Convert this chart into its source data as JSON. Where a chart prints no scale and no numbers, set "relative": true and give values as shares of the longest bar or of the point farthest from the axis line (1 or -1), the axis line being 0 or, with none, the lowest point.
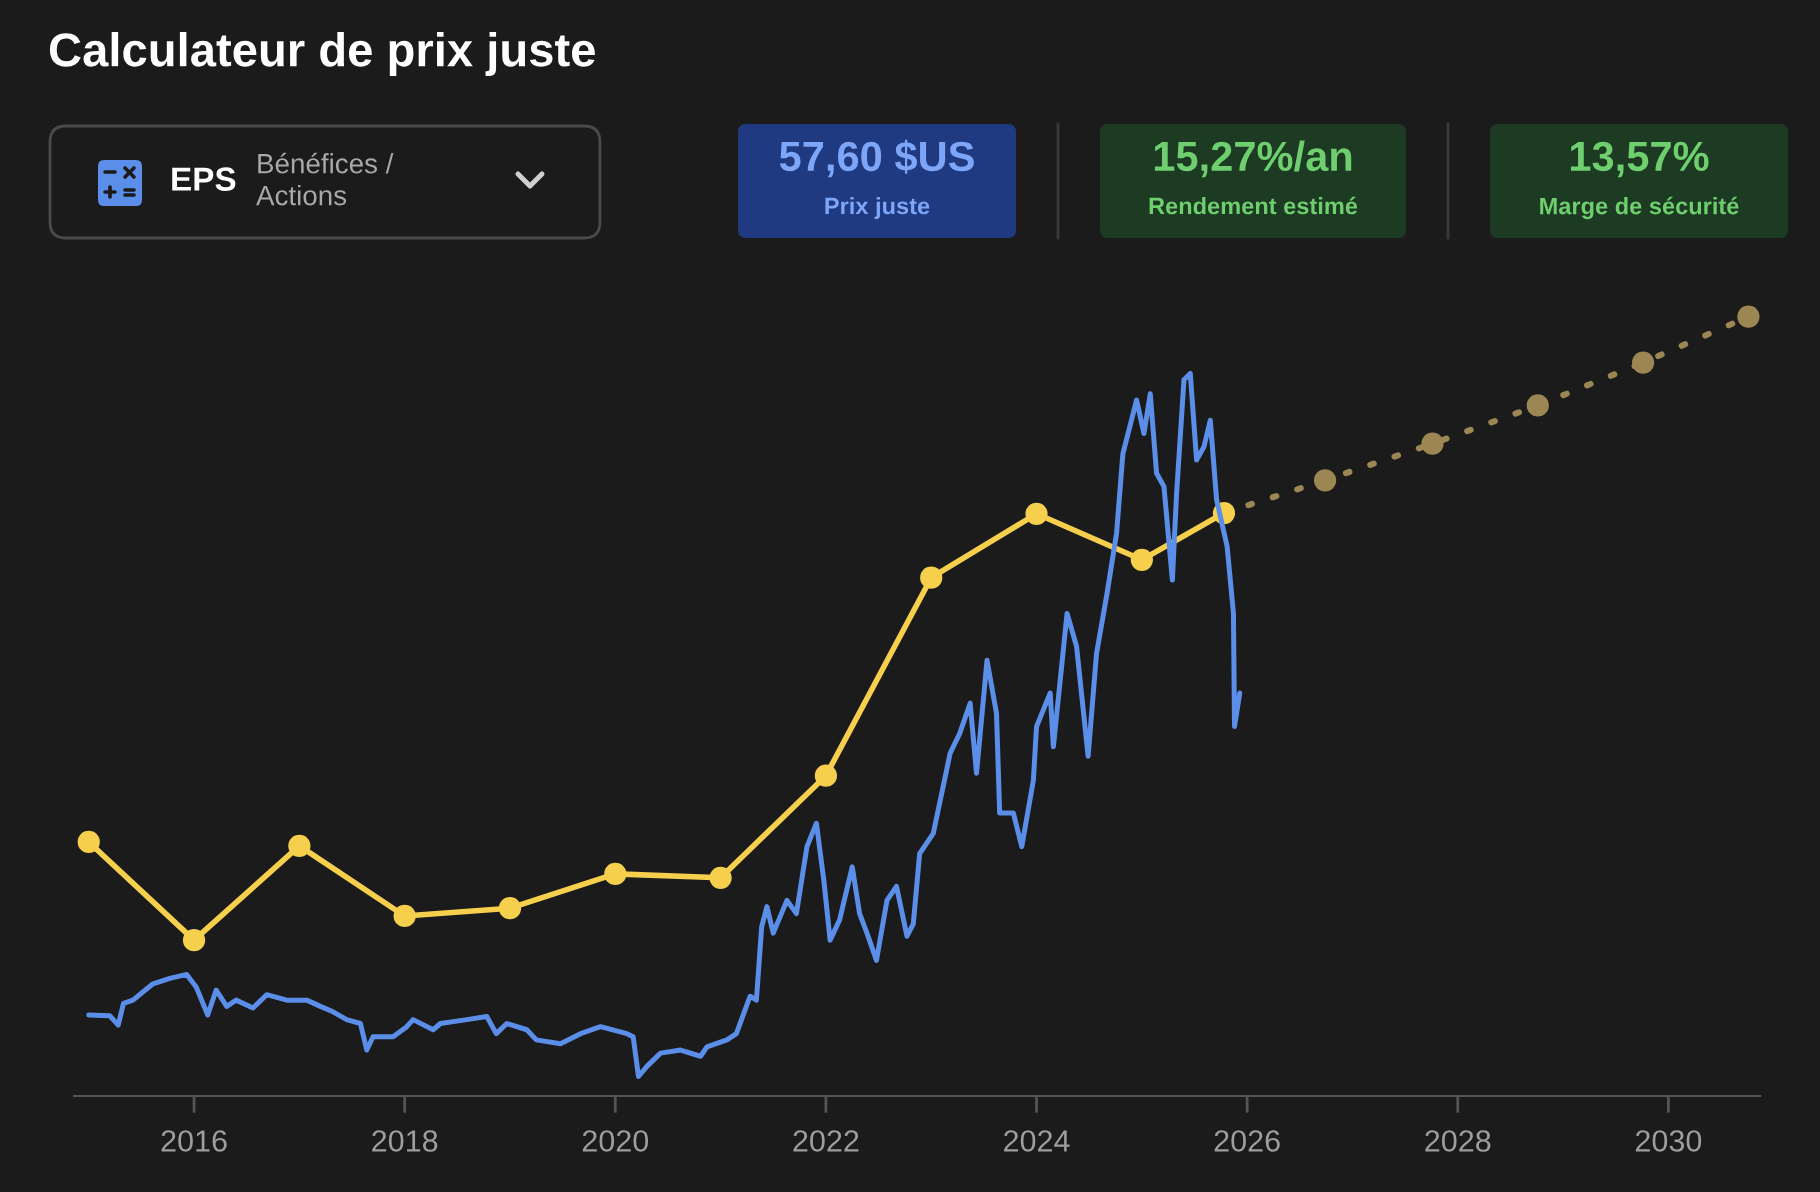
{
  "chart_data": {
    "type": "line",
    "title": "Calculateur de prix juste",
    "annotations": [
      "EPS",
      "Bénéfices /\nActions",
      "57,60 $US",
      "Prix juste",
      "15,27%/an",
      "Rendement estimé",
      "13,57%",
      "Marge de sécurité"
    ],
    "relative": true,
    "xlim": [
      2014.86,
      2030.87
    ],
    "xticks": [
      2016,
      2018,
      2020,
      2022,
      2024,
      2026,
      2028,
      2030
    ],
    "tick_labels": "x",
    "series": [
      {
        "color": "#9c8654",
        "marker": "circle",
        "line_style": "dotted",
        "x": [
          2025.78,
          2026.74,
          2027.76,
          2028.76,
          2029.76,
          2030.76
        ],
        "values": [
          0.748,
          0.79,
          0.837,
          0.886,
          0.941,
          1.0
        ]
      },
      {
        "color": "#f6d04d",
        "marker": "circle",
        "line_style": "solid",
        "x": [
          2015,
          2016,
          2017,
          2018,
          2019,
          2020,
          2021,
          2022,
          2023,
          2024,
          2025,
          2025.78
        ],
        "values": [
          0.326,
          0.2,
          0.321,
          0.231,
          0.241,
          0.285,
          0.28,
          0.411,
          0.665,
          0.747,
          0.688,
          0.748
        ]
      },
      {
        "type": "line",
        "color": "#5b8ee8",
        "marker": "none",
        "line_style": "solid",
        "x": [
          2015.0,
          2015.2,
          2015.28,
          2015.33,
          2015.42,
          2015.61,
          2015.77,
          2015.93,
          2016.02,
          2016.13,
          2016.21,
          2016.31,
          2016.4,
          2016.56,
          2016.69,
          2016.88,
          2017.07,
          2017.2,
          2017.32,
          2017.45,
          2017.58,
          2017.64,
          2017.7,
          2017.89,
          2018.02,
          2018.08,
          2018.27,
          2018.34,
          2018.59,
          2018.78,
          2018.87,
          2018.97,
          2019.16,
          2019.25,
          2019.48,
          2019.67,
          2019.86,
          2020.11,
          2020.17,
          2020.22,
          2020.3,
          2020.43,
          2020.62,
          2020.81,
          2020.87,
          2021.06,
          2021.15,
          2021.22,
          2021.28,
          2021.34,
          2021.39,
          2021.44,
          2021.5,
          2021.63,
          2021.72,
          2021.82,
          2021.91,
          2021.98,
          2022.04,
          2022.13,
          2022.25,
          2022.32,
          2022.39,
          2022.48,
          2022.58,
          2022.67,
          2022.77,
          2022.83,
          2022.89,
          2023.02,
          2023.18,
          2023.27,
          2023.37,
          2023.43,
          2023.53,
          2023.62,
          2023.65,
          2023.78,
          2023.86,
          2023.97,
          2024.0,
          2024.13,
          2024.16,
          2024.29,
          2024.38,
          2024.49,
          2024.57,
          2024.67,
          2024.76,
          2024.82,
          2024.95,
          2025.02,
          2025.08,
          2025.14,
          2025.21,
          2025.29,
          2025.33,
          2025.4,
          2025.46,
          2025.52,
          2025.59,
          2025.65,
          2025.71,
          2025.81,
          2025.87,
          2025.88,
          2025.93
        ],
        "values": [
          0.104,
          0.103,
          0.091,
          0.119,
          0.123,
          0.144,
          0.151,
          0.156,
          0.14,
          0.104,
          0.136,
          0.115,
          0.123,
          0.113,
          0.13,
          0.123,
          0.123,
          0.115,
          0.108,
          0.098,
          0.093,
          0.059,
          0.076,
          0.076,
          0.089,
          0.098,
          0.085,
          0.093,
          0.098,
          0.102,
          0.08,
          0.093,
          0.085,
          0.072,
          0.067,
          0.08,
          0.089,
          0.08,
          0.076,
          0.025,
          0.038,
          0.055,
          0.059,
          0.051,
          0.063,
          0.072,
          0.08,
          0.106,
          0.128,
          0.123,
          0.217,
          0.243,
          0.209,
          0.251,
          0.234,
          0.32,
          0.35,
          0.277,
          0.2,
          0.226,
          0.294,
          0.234,
          0.209,
          0.174,
          0.251,
          0.269,
          0.205,
          0.221,
          0.311,
          0.337,
          0.44,
          0.465,
          0.504,
          0.414,
          0.559,
          0.491,
          0.363,
          0.363,
          0.32,
          0.405,
          0.474,
          0.517,
          0.448,
          0.619,
          0.577,
          0.436,
          0.568,
          0.645,
          0.722,
          0.824,
          0.893,
          0.85,
          0.901,
          0.799,
          0.782,
          0.662,
          0.773,
          0.919,
          0.927,
          0.816,
          0.833,
          0.867,
          0.765,
          0.705,
          0.619,
          0.474,
          0.517
        ]
      }
    ]
  }
}
